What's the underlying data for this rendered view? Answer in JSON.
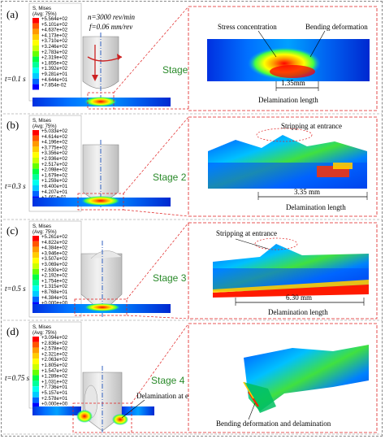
{
  "figure": {
    "panels": [
      {
        "label": "(a)",
        "time": "t=0.1 s",
        "stage": "Stage 1",
        "legend_title": "S, Mises",
        "legend_avg": "(Avg: 75%)",
        "legend_values": [
          "+5.564e+02",
          "+5.101e+02",
          "+4.637e+02",
          "+4.173e+02",
          "+3.710e+02",
          "+3.246e+02",
          "+2.783e+02",
          "+2.319e+02",
          "+1.855e+02",
          "+1.392e+02",
          "+9.281e+01",
          "+4.644e+01",
          "+7.854e-02"
        ],
        "params": {
          "speed": "n=3000 rev/min",
          "feed": "f=0.06  mm/rev"
        },
        "annotations": [
          "Stress concentration",
          "Bending deformation"
        ],
        "length": "1.35mm",
        "length_caption": "Delamination length"
      },
      {
        "label": "(b)",
        "time": "t=0.3 s",
        "stage": "Stage 2",
        "legend_title": "S, Mises",
        "legend_avg": "(Avg: 75%)",
        "legend_values": [
          "+5.033e+02",
          "+4.614e+02",
          "+4.196e+02",
          "+3.775e+02",
          "+3.356e+02",
          "+2.936e+02",
          "+2.517e+02",
          "+2.098e+02",
          "+1.679e+02",
          "+1.259e+02",
          "+8.400e+01",
          "+4.207e+01",
          "+1.461e-01"
        ],
        "annotations": [
          "Stripping at entrance"
        ],
        "length": "3.35 mm",
        "length_caption": "Delamination length"
      },
      {
        "label": "(c)",
        "time": "t=0.5 s",
        "stage": "Stage 3",
        "legend_title": "S, Mises",
        "legend_avg": "(Avg: 75%)",
        "legend_values": [
          "+5.261e+02",
          "+4.822e+02",
          "+4.384e+02",
          "+3.946e+02",
          "+3.507e+02",
          "+3.069e+02",
          "+2.630e+02",
          "+2.192e+02",
          "+1.754e+02",
          "+1.315e+02",
          "+8.768e+01",
          "+4.384e+01",
          "+0.000e+00"
        ],
        "annotations": [
          "Stripping at entrance"
        ],
        "length": "6.30 mm",
        "length_caption": "Delamination length"
      },
      {
        "label": "(d)",
        "time": "t=0.75 s",
        "stage": "Stage 4",
        "legend_title": "S, Mises",
        "legend_avg": "(Avg: 75%)",
        "legend_values": [
          "+3.094e+02",
          "+2.836e+02",
          "+2.578e+02",
          "+2.321e+02",
          "+2.063e+02",
          "+1.805e+02",
          "+1.547e+02",
          "+1.289e+02",
          "+1.031e+02",
          "+7.736e+01",
          "+5.157e+01",
          "+2.578e+01",
          "+0.000e+00"
        ],
        "annotations": [
          "Delamination at exit",
          "Bending deformation and delamination"
        ]
      }
    ],
    "colors": {
      "stage_text": "#2a8a2a",
      "dash_red": "#e02020",
      "drill_axis": "#3060c0",
      "contour_scale": [
        "#ff0000",
        "#ff5500",
        "#ff9900",
        "#ffcc00",
        "#ffff00",
        "#ccff00",
        "#66ff00",
        "#00ff44",
        "#00ff99",
        "#00ffee",
        "#00ccff",
        "#0066ff",
        "#0000ff"
      ]
    }
  }
}
